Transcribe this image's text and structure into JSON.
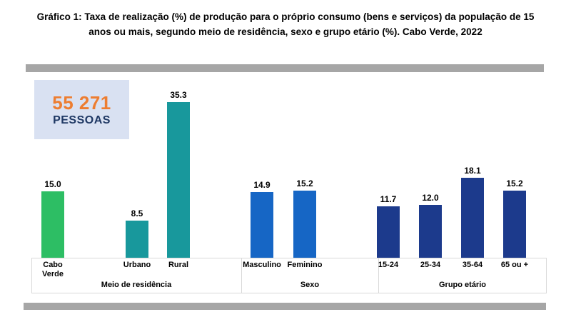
{
  "title": "Gráfico 1: Taxa de realização (%) de produção para o próprio consumo (bens e serviços) da população de 15 anos ou mais, segundo meio de residência, sexo e grupo etário (%). Cabo Verde, 2022",
  "callout": {
    "value": "55 271",
    "label": "PESSOAS"
  },
  "colors": {
    "green": "#2dbe64",
    "teal": "#18989c",
    "blue": "#1666c5",
    "navy": "#1c3a8c",
    "separator_gray": "#a6a6a6",
    "axis_border": "#d9d9d9",
    "callout_bg": "#d9e1f2",
    "callout_value": "#ed7d31",
    "callout_label": "#1f3864",
    "title_color": "#000000"
  },
  "chart_data": {
    "type": "bar",
    "title": "Taxa de realização (%) de produção para o próprio consumo (bens e serviços) da população de 15 anos ou mais, segundo meio de residência, sexo e grupo etário (%). Cabo Verde, 2022",
    "annotation": "55 271 PESSOAS",
    "ylim": [
      0,
      38
    ],
    "grid": false,
    "legend": false,
    "value_label_format": "one_decimal",
    "groups": [
      {
        "label": "Meio de residência",
        "categories": [
          "Cabo Verde",
          "Urbano",
          "Rural"
        ],
        "values": [
          15.0,
          8.5,
          35.3
        ],
        "bar_colors": [
          "green",
          "teal",
          "teal"
        ]
      },
      {
        "label": "Sexo",
        "categories": [
          "Masculino",
          "Feminino"
        ],
        "values": [
          14.9,
          15.2
        ],
        "bar_colors": [
          "blue",
          "blue"
        ]
      },
      {
        "label": "Grupo etário",
        "categories": [
          "15-24",
          "25-34",
          "35-64",
          "65 ou +"
        ],
        "values": [
          11.7,
          12.0,
          18.1,
          15.2
        ],
        "bar_colors": [
          "navy",
          "navy",
          "navy",
          "navy"
        ]
      }
    ]
  }
}
